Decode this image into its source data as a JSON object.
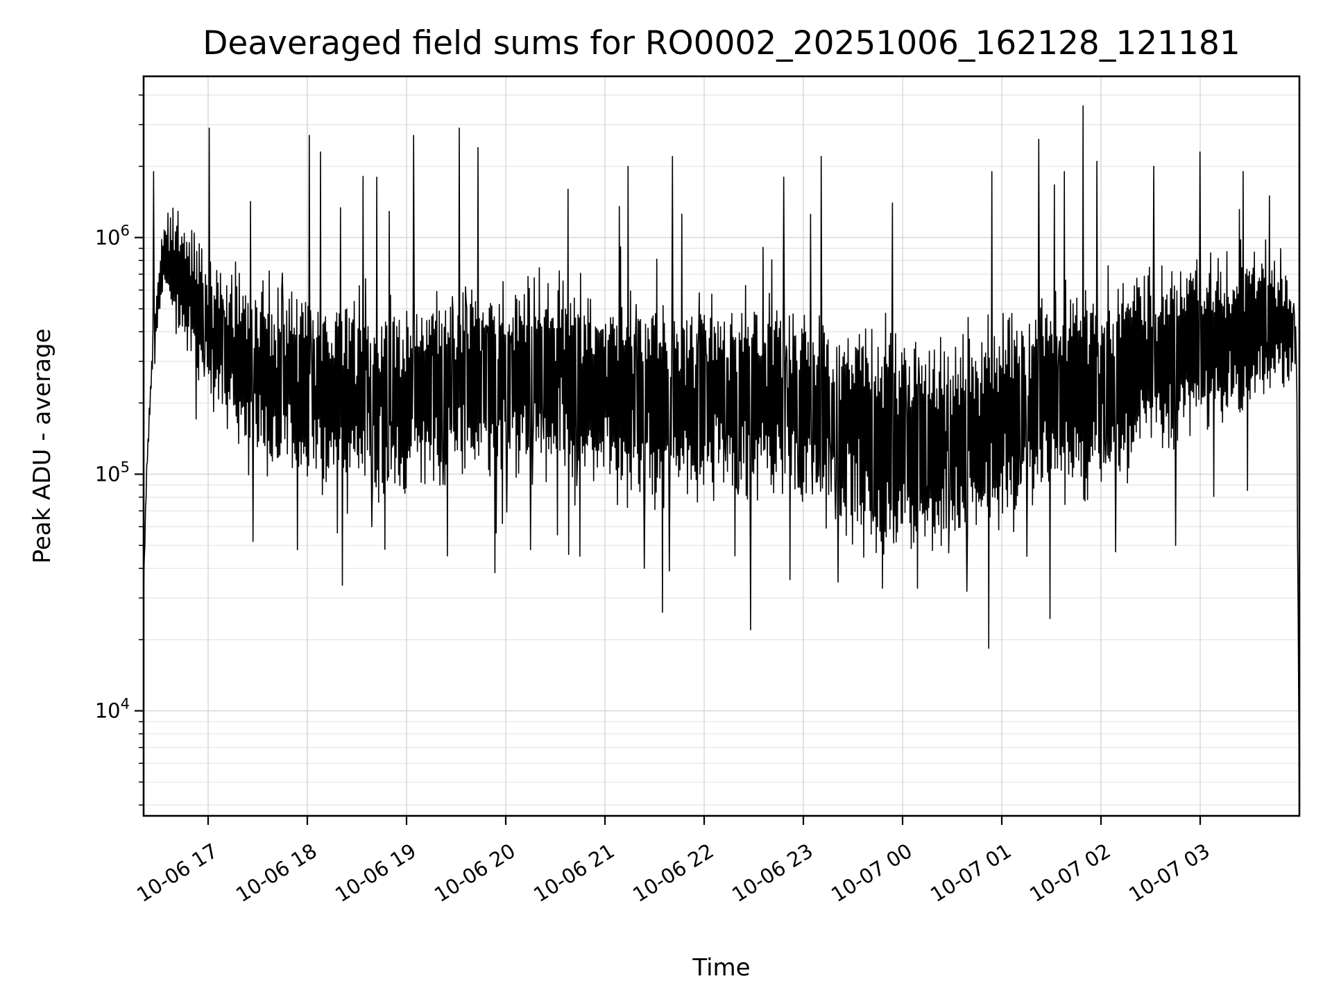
{
  "figure": {
    "background": "#ffffff"
  },
  "chart_data": {
    "type": "line",
    "title": "Deaveraged field sums for RO0002_20251006_162128_121181",
    "xlabel": "Time",
    "ylabel": "Peak ADU - average",
    "grid": {
      "visible": true,
      "major_color": "#d8d8d8",
      "minor_color": "#e4e4e4"
    },
    "x_axis": {
      "kind": "time",
      "start_clock": "10-06 16:21",
      "end_clock": "10-07 03:59",
      "duration_hours": 11.65,
      "tick_offsets_hours": [
        0.65,
        1.65,
        2.65,
        3.65,
        4.65,
        5.65,
        6.65,
        7.65,
        8.65,
        9.65,
        10.65
      ],
      "tick_labels": [
        "10-06 17",
        "10-06 18",
        "10-06 19",
        "10-06 20",
        "10-06 21",
        "10-06 22",
        "10-06 23",
        "10-07 00",
        "10-07 01",
        "10-07 02",
        "10-07 03"
      ]
    },
    "y_axis": {
      "scale": "log",
      "limits": [
        3600,
        4800000
      ],
      "major_ticks": [
        {
          "base": "10",
          "exponent": "4",
          "value": 10000
        },
        {
          "base": "10",
          "exponent": "5",
          "value": 100000
        },
        {
          "base": "10",
          "exponent": "6",
          "value": 1000000
        }
      ],
      "minor_ticks_per_decade": [
        2,
        3,
        4,
        5,
        6,
        7,
        8,
        9
      ]
    },
    "series": [
      {
        "name": "deaveraged-field-sum",
        "color": "#000000",
        "line_width": 1.6,
        "points": 1850,
        "start_value": 33000,
        "end_value": 3600,
        "median_log10_keyframes": [
          [
            0.0,
            4.52
          ],
          [
            0.03,
            5.0
          ],
          [
            0.1,
            5.6
          ],
          [
            0.2,
            5.93
          ],
          [
            0.45,
            5.78
          ],
          [
            0.8,
            5.55
          ],
          [
            1.3,
            5.42
          ],
          [
            2.0,
            5.3
          ],
          [
            2.6,
            5.33
          ],
          [
            3.2,
            5.4
          ],
          [
            4.0,
            5.42
          ],
          [
            4.7,
            5.33
          ],
          [
            5.4,
            5.3
          ],
          [
            6.1,
            5.33
          ],
          [
            6.8,
            5.28
          ],
          [
            7.3,
            5.18
          ],
          [
            7.9,
            5.1
          ],
          [
            8.4,
            5.17
          ],
          [
            9.0,
            5.3
          ],
          [
            9.5,
            5.34
          ],
          [
            10.0,
            5.45
          ],
          [
            10.6,
            5.52
          ],
          [
            11.1,
            5.6
          ],
          [
            11.45,
            5.66
          ],
          [
            11.62,
            5.55
          ],
          [
            11.65,
            3.56
          ]
        ],
        "spread_log10_keyframes": [
          [
            0.0,
            0.02
          ],
          [
            0.1,
            0.08
          ],
          [
            0.3,
            0.22
          ],
          [
            0.7,
            0.3
          ],
          [
            1.5,
            0.35
          ],
          [
            3.0,
            0.36
          ],
          [
            5.0,
            0.37
          ],
          [
            6.5,
            0.38
          ],
          [
            7.5,
            0.42
          ],
          [
            8.5,
            0.4
          ],
          [
            9.5,
            0.38
          ],
          [
            10.5,
            0.34
          ],
          [
            11.3,
            0.3
          ],
          [
            11.55,
            0.2
          ],
          [
            11.65,
            0.04
          ]
        ],
        "peaks": [
          [
            0.1,
            1900000
          ],
          [
            0.66,
            2900000
          ],
          [
            1.67,
            2700000
          ],
          [
            1.78,
            2300000
          ],
          [
            2.35,
            1800000
          ],
          [
            2.72,
            2700000
          ],
          [
            3.18,
            2900000
          ],
          [
            3.37,
            2400000
          ],
          [
            4.28,
            1600000
          ],
          [
            4.88,
            2000000
          ],
          [
            5.33,
            2200000
          ],
          [
            6.45,
            1800000
          ],
          [
            6.83,
            2200000
          ],
          [
            7.55,
            1400000
          ],
          [
            8.55,
            1900000
          ],
          [
            9.02,
            2600000
          ],
          [
            9.28,
            1900000
          ],
          [
            9.47,
            3600000
          ],
          [
            9.61,
            2100000
          ],
          [
            10.18,
            2000000
          ],
          [
            10.65,
            2300000
          ],
          [
            11.08,
            1900000
          ],
          [
            11.35,
            1500000
          ]
        ],
        "dips": [
          [
            1.1,
            52000
          ],
          [
            1.55,
            48000
          ],
          [
            2.3,
            60000
          ],
          [
            3.9,
            48000
          ],
          [
            4.4,
            45000
          ],
          [
            5.05,
            40000
          ],
          [
            5.3,
            39000
          ],
          [
            6.12,
            22000
          ],
          [
            7.0,
            35000
          ],
          [
            7.45,
            33000
          ],
          [
            7.8,
            33000
          ],
          [
            8.3,
            32000
          ],
          [
            8.9,
            45000
          ],
          [
            9.8,
            47000
          ],
          [
            10.4,
            50000
          ]
        ]
      }
    ]
  }
}
